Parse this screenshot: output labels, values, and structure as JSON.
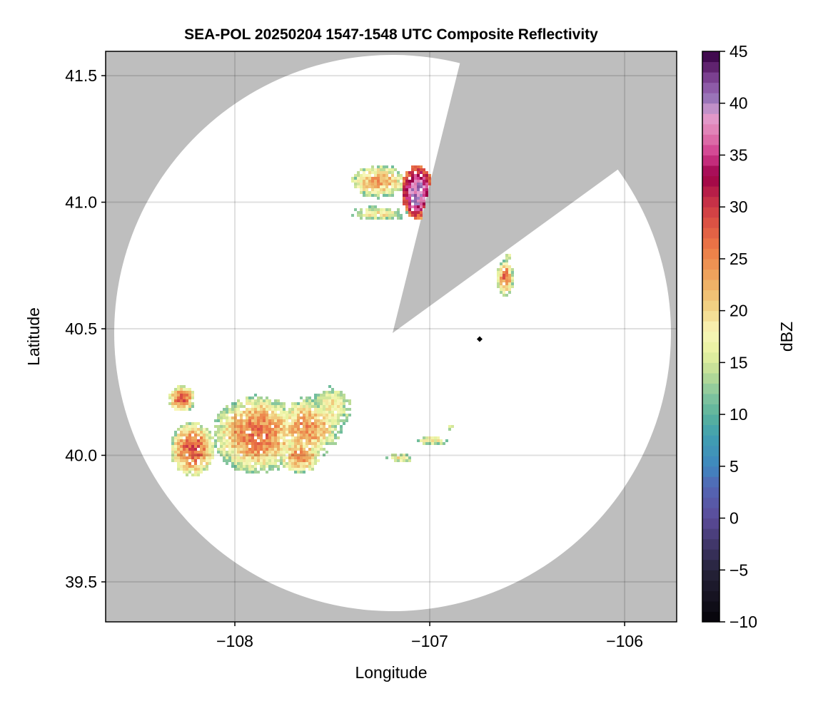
{
  "chart_data": {
    "type": "heatmap",
    "title": "SEA-POL 20250204 1547-1548 UTC Composite Reflectivity",
    "xlabel": "Longitude",
    "ylabel": "Latitude",
    "colorbar_label": "dBZ",
    "xlim": [
      -108.663,
      -105.733
    ],
    "ylim": [
      39.342,
      41.596
    ],
    "xticks": [
      -108,
      -107,
      -106
    ],
    "xtick_labels": [
      "−108",
      "−107",
      "−106"
    ],
    "yticks": [
      39.5,
      40.0,
      40.5,
      41.0,
      41.5
    ],
    "ytick_labels": [
      "39.5",
      "40.0",
      "40.5",
      "41.0",
      "41.5"
    ],
    "clim": [
      -10,
      45
    ],
    "cticks": [
      -10,
      -5,
      0,
      5,
      10,
      15,
      20,
      25,
      30,
      35,
      40,
      45
    ],
    "ctick_labels": [
      "−10",
      "−5",
      "0",
      "5",
      "10",
      "15",
      "20",
      "25",
      "30",
      "35",
      "40",
      "45"
    ],
    "grid": true,
    "colors": {
      "masked": "#bebebe",
      "no_echo": "#ffffff",
      "grid": "#d0d0d0",
      "marker": "#000000"
    },
    "colormap": [
      [
        -10,
        "#050308"
      ],
      [
        -5,
        "#26233a"
      ],
      [
        0,
        "#5b4b9a"
      ],
      [
        3,
        "#5466b4"
      ],
      [
        5,
        "#3f87c0"
      ],
      [
        8,
        "#40a0b0"
      ],
      [
        10,
        "#5bb39c"
      ],
      [
        12,
        "#86c69e"
      ],
      [
        14,
        "#bddc96"
      ],
      [
        16,
        "#e8f2a0"
      ],
      [
        18,
        "#f8f6b8"
      ],
      [
        20,
        "#f2d78a"
      ],
      [
        23,
        "#eeaa60"
      ],
      [
        26,
        "#ec7a46"
      ],
      [
        29,
        "#d84a44"
      ],
      [
        31,
        "#c02848"
      ],
      [
        33,
        "#9c0048"
      ],
      [
        35,
        "#d03a8c"
      ],
      [
        37,
        "#e07ab0"
      ],
      [
        39,
        "#e2a0d0"
      ],
      [
        40,
        "#a080c0"
      ],
      [
        42,
        "#884fa0"
      ],
      [
        44,
        "#52145e"
      ],
      [
        45,
        "#300040"
      ]
    ],
    "echo_regions": [
      {
        "lon": -107.264,
        "lat": 41.082,
        "rlon": 0.128,
        "rlat": 0.056,
        "peak_dbz": 23
      },
      {
        "lon": -107.062,
        "lat": 41.039,
        "rlon": 0.066,
        "rlat": 0.085,
        "peak_dbz": 40
      },
      {
        "lon": -107.264,
        "lat": 40.955,
        "rlon": 0.147,
        "rlat": 0.028,
        "peak_dbz": 19
      },
      {
        "lon": -106.612,
        "lat": 40.701,
        "rlon": 0.037,
        "rlat": 0.056,
        "peak_dbz": 26
      },
      {
        "lon": -106.601,
        "lat": 40.786,
        "rlon": 0.03,
        "rlat": 0.014,
        "peak_dbz": 17
      },
      {
        "lon": -108.271,
        "lat": 40.223,
        "rlon": 0.055,
        "rlat": 0.042,
        "peak_dbz": 28
      },
      {
        "lon": -108.216,
        "lat": 40.025,
        "rlon": 0.092,
        "rlat": 0.085,
        "peak_dbz": 28
      },
      {
        "lon": -107.886,
        "lat": 40.082,
        "rlon": 0.183,
        "rlat": 0.127,
        "peak_dbz": 26
      },
      {
        "lon": -107.63,
        "lat": 40.11,
        "rlon": 0.147,
        "rlat": 0.099,
        "peak_dbz": 24
      },
      {
        "lon": -107.502,
        "lat": 40.194,
        "rlon": 0.11,
        "rlat": 0.085,
        "peak_dbz": 18
      },
      {
        "lon": -107.667,
        "lat": 39.997,
        "rlon": 0.092,
        "rlat": 0.056,
        "peak_dbz": 25
      },
      {
        "lon": -107.15,
        "lat": 39.99,
        "rlon": 0.07,
        "rlat": 0.02,
        "peak_dbz": 19
      },
      {
        "lon": -106.99,
        "lat": 40.06,
        "rlon": 0.08,
        "rlat": 0.022,
        "peak_dbz": 19
      },
      {
        "lon": -106.9,
        "lat": 40.11,
        "rlon": 0.03,
        "rlat": 0.015,
        "peak_dbz": 16
      }
    ],
    "site_marker": {
      "lon": -106.744,
      "lat": 40.459
    }
  }
}
